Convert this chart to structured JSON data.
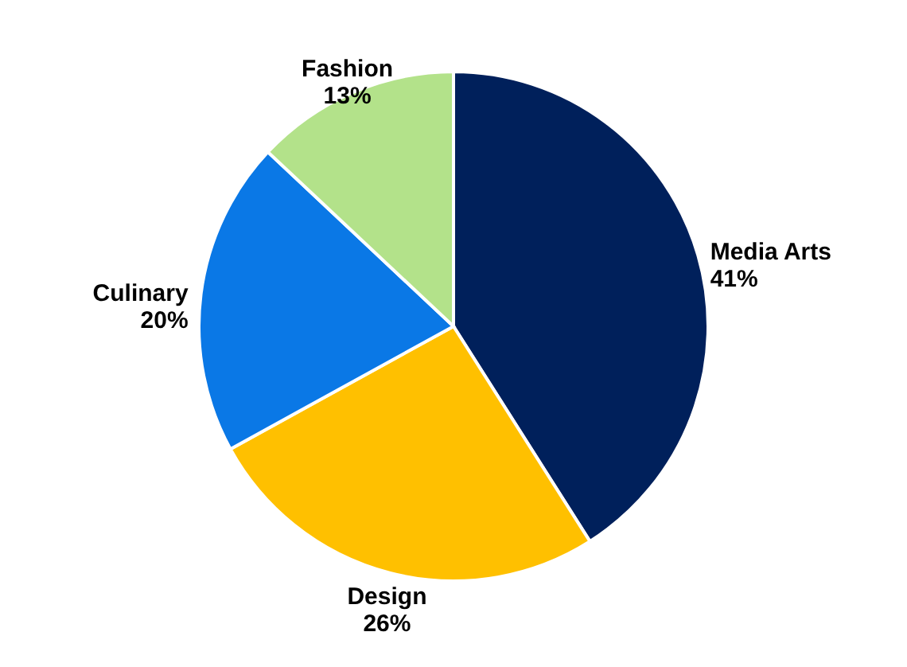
{
  "chart_data": {
    "type": "pie",
    "categories": [
      "Media Arts",
      "Design",
      "Culinary",
      "Fashion"
    ],
    "values": [
      41,
      26,
      20,
      13
    ],
    "value_labels": [
      "41%",
      "26%",
      "20%",
      "13%"
    ],
    "colors": [
      "#00205b",
      "#ffc000",
      "#0a78e6",
      "#b3e28a"
    ]
  }
}
